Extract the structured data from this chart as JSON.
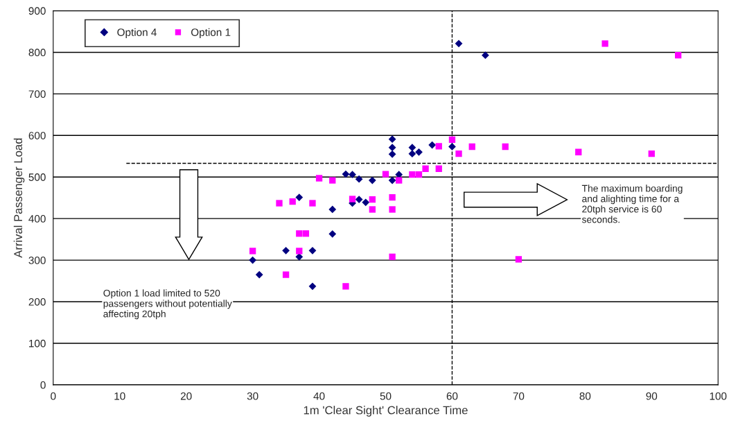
{
  "chart_data": {
    "type": "scatter",
    "xlabel": "1m 'Clear Sight' Clearance Time",
    "ylabel": "Arrival Passenger Load",
    "xlim": [
      0,
      100
    ],
    "xticks": [
      0,
      10,
      20,
      30,
      40,
      50,
      60,
      70,
      80,
      90,
      100
    ],
    "ylim": [
      0,
      900
    ],
    "yticks": [
      0,
      100,
      200,
      300,
      400,
      500,
      600,
      700,
      800,
      900
    ],
    "grid": "y",
    "legend": "top left",
    "series": [
      {
        "name": "Option 4",
        "color": "#000080",
        "marker": "diamond",
        "x": [
          30,
          31,
          35,
          37,
          37,
          39,
          39,
          42,
          42,
          44,
          45,
          45,
          46,
          46,
          47,
          48,
          51,
          51,
          51,
          51,
          52,
          54,
          54,
          55,
          57,
          60,
          61,
          65
        ],
        "values": [
          300,
          265,
          323,
          308,
          451,
          323,
          237,
          422,
          363,
          507,
          506,
          437,
          495,
          446,
          439,
          492,
          591,
          571,
          555,
          492,
          506,
          571,
          556,
          560,
          577,
          573,
          821,
          793
        ]
      },
      {
        "name": "Option 1",
        "color": "#ff00ff",
        "marker": "square",
        "x": [
          30,
          34,
          35,
          36,
          37,
          37,
          38,
          39,
          40,
          42,
          44,
          45,
          48,
          48,
          50,
          51,
          51,
          51,
          52,
          54,
          55,
          56,
          58,
          58,
          60,
          61,
          63,
          68,
          70,
          79,
          83,
          90,
          94
        ],
        "values": [
          322,
          437,
          265,
          441,
          364,
          322,
          364,
          437,
          497,
          492,
          237,
          447,
          446,
          422,
          507,
          451,
          422,
          308,
          492,
          506,
          506,
          520,
          574,
          520,
          590,
          556,
          573,
          573,
          302,
          560,
          821,
          556,
          793
        ]
      },
      {
        "type": "line",
        "color": "#000000",
        "line_style": "dashed",
        "x": [
          11,
          100
        ],
        "values": [
          533,
          533
        ]
      }
    ],
    "ref_lines": [
      {
        "axis": "x",
        "value": 60,
        "color": "#000000",
        "line_style": "dashed"
      }
    ],
    "annotations": [
      "Option 1 load limited to 520 passengers without potentially affecting 20tph",
      "The maximum boarding and alighting time for a 20tph service is 60 seconds."
    ]
  }
}
